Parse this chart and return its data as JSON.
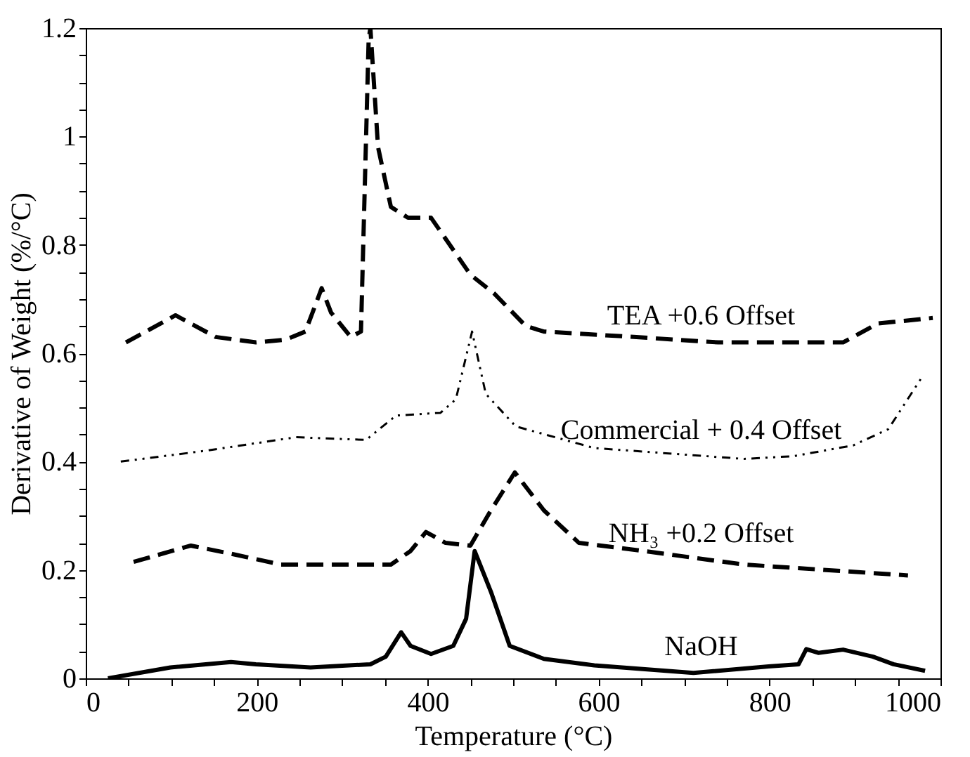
{
  "chart_data": {
    "type": "line",
    "xlabel": "Temperature (°C)",
    "ylabel": "Derivative of Weight (%/°C)",
    "xlim": [
      0,
      1000
    ],
    "ylim": [
      0,
      1.2
    ],
    "xticks": [
      0,
      {
        "value": 50,
        "label": null
      },
      {
        "value": 100,
        "label": null
      },
      {
        "value": 150,
        "label": null
      },
      200,
      {
        "value": 250,
        "label": null
      },
      {
        "value": 300,
        "label": null
      },
      {
        "value": 350,
        "label": null
      },
      400,
      {
        "value": 450,
        "label": null
      },
      {
        "value": 500,
        "label": null
      },
      {
        "value": 550,
        "label": null
      },
      600,
      {
        "value": 650,
        "label": null
      },
      {
        "value": 700,
        "label": null
      },
      {
        "value": 750,
        "label": null
      },
      800,
      {
        "value": 850,
        "label": null
      },
      {
        "value": 900,
        "label": null
      },
      {
        "value": 950,
        "label": null
      },
      1000
    ],
    "yticks": [
      0,
      {
        "value": 0.05,
        "label": null
      },
      {
        "value": 0.1,
        "label": null
      },
      {
        "value": 0.15,
        "label": null
      },
      0.2,
      {
        "value": 0.25,
        "label": null
      },
      {
        "value": 0.3,
        "label": null
      },
      {
        "value": 0.35,
        "label": null
      },
      0.4,
      {
        "value": 0.45,
        "label": null
      },
      {
        "value": 0.5,
        "label": null
      },
      {
        "value": 0.55,
        "label": null
      },
      0.6,
      {
        "value": 0.65,
        "label": null
      },
      {
        "value": 0.7,
        "label": null
      },
      {
        "value": 0.75,
        "label": null
      },
      0.8,
      {
        "value": 0.85,
        "label": null
      },
      {
        "value": 0.9,
        "label": null
      },
      {
        "value": 0.95,
        "label": null
      },
      1,
      {
        "value": 1.05,
        "label": null
      },
      {
        "value": 1.1,
        "label": null
      },
      {
        "value": 1.15,
        "label": null
      },
      1.2
    ],
    "grid": false,
    "series": [
      {
        "name": "TEA +0.6 Offset",
        "color": "#000000",
        "line_style": "dashed",
        "x": [
          47,
          105,
          152,
          199,
          234,
          257,
          276,
          287,
          310,
          322,
          331,
          333,
          342,
          357,
          377,
          404,
          450,
          478,
          515,
          536,
          641,
          740,
          886,
          927,
          991
        ],
        "values": [
          0.62,
          0.67,
          0.63,
          0.62,
          0.625,
          0.64,
          0.72,
          0.675,
          0.63,
          0.64,
          1.18,
          1.2,
          0.98,
          0.87,
          0.85,
          0.85,
          0.745,
          0.71,
          0.65,
          0.64,
          0.63,
          0.62,
          0.62,
          0.655,
          0.665
        ]
      },
      {
        "name": "Commercial + 0.4 Offset",
        "color": "#000000",
        "line_style": "dotted",
        "x": [
          41,
          140,
          246,
          328,
          363,
          415,
          433,
          452,
          468,
          503,
          595,
          770,
          828,
          898,
          939,
          980
        ],
        "values": [
          0.4,
          0.42,
          0.445,
          0.44,
          0.485,
          0.49,
          0.515,
          0.64,
          0.525,
          0.465,
          0.425,
          0.405,
          0.41,
          0.43,
          0.46,
          0.56
        ]
      },
      {
        "name": "NH₃ +0.2 Offset",
        "color": "#000000",
        "line_style": "dashed",
        "x": [
          56,
          123,
          170,
          228,
          357,
          380,
          398,
          421,
          450,
          474,
          502,
          536,
          577,
          653,
          770,
          962
        ],
        "values": [
          0.215,
          0.245,
          0.23,
          0.21,
          0.21,
          0.235,
          0.27,
          0.25,
          0.245,
          0.31,
          0.38,
          0.31,
          0.25,
          0.235,
          0.21,
          0.19
        ]
      },
      {
        "name": "NaOH",
        "color": "#000000",
        "line_style": "solid",
        "x": [
          26,
          99,
          170,
          199,
          263,
          333,
          351,
          369,
          380,
          404,
          430,
          445,
          455,
          474,
          496,
          536,
          595,
          711,
          799,
          834,
          843,
          857,
          886,
          921,
          945,
          982
        ],
        "values": [
          0,
          0.02,
          0.03,
          0.026,
          0.02,
          0.026,
          0.04,
          0.085,
          0.06,
          0.045,
          0.06,
          0.11,
          0.235,
          0.16,
          0.06,
          0.036,
          0.024,
          0.01,
          0.022,
          0.026,
          0.054,
          0.047,
          0.053,
          0.04,
          0.026,
          0.014
        ]
      }
    ]
  }
}
